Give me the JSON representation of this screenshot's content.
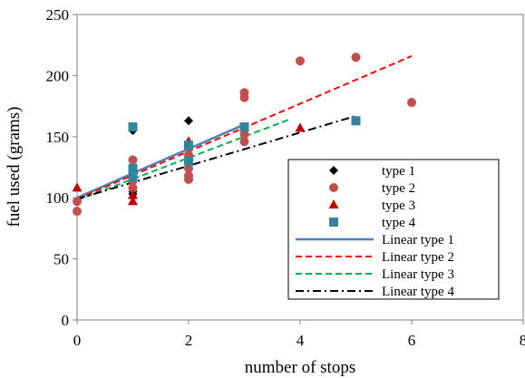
{
  "chart_data": {
    "type": "scatter",
    "title": "",
    "xlabel": "number of stops",
    "ylabel": "fuel used (grams)",
    "xlim": [
      0,
      8
    ],
    "ylim": [
      0,
      250
    ],
    "xticks": [
      0,
      2,
      4,
      6,
      8
    ],
    "yticks": [
      0,
      50,
      100,
      150,
      200,
      250
    ],
    "grid": false,
    "legend_position": "right",
    "series": [
      {
        "name": "type 1",
        "kind": "scatter",
        "marker": "diamond",
        "color": "#000000",
        "points": [
          [
            1,
            155
          ],
          [
            1,
            105
          ],
          [
            1,
            103
          ],
          [
            2,
            163
          ],
          [
            2,
            141
          ],
          [
            3,
            157
          ]
        ]
      },
      {
        "name": "type 2",
        "kind": "scatter",
        "marker": "circle",
        "color": "#c0504d",
        "points": [
          [
            0,
            89
          ],
          [
            0,
            97
          ],
          [
            1,
            131
          ],
          [
            1,
            121
          ],
          [
            1,
            116
          ],
          [
            1,
            114
          ],
          [
            1,
            108
          ],
          [
            2,
            142
          ],
          [
            2,
            135
          ],
          [
            2,
            124
          ],
          [
            2,
            118
          ],
          [
            2,
            115
          ],
          [
            3,
            186
          ],
          [
            3,
            182
          ],
          [
            3,
            152
          ],
          [
            3,
            146
          ],
          [
            4,
            212
          ],
          [
            5,
            215
          ],
          [
            6,
            178
          ]
        ]
      },
      {
        "name": "type 3",
        "kind": "scatter",
        "marker": "triangle",
        "color": "#c00000",
        "points": [
          [
            0,
            108
          ],
          [
            1,
            102
          ],
          [
            1,
            97
          ],
          [
            2,
            146
          ],
          [
            4,
            157
          ]
        ]
      },
      {
        "name": "type 4",
        "kind": "scatter",
        "marker": "square",
        "color": "#31859c",
        "points": [
          [
            1,
            158
          ],
          [
            1,
            124
          ],
          [
            1,
            117
          ],
          [
            2,
            143
          ],
          [
            2,
            130
          ],
          [
            3,
            158
          ],
          [
            5,
            163
          ]
        ]
      },
      {
        "name": "Linear type 1",
        "kind": "line",
        "dash": "solid",
        "color": "#4f81bd",
        "points": [
          [
            0,
            100
          ],
          [
            3,
            160
          ]
        ]
      },
      {
        "name": "Linear type 2",
        "kind": "line",
        "dash": "dashed",
        "color": "#ff0000",
        "points": [
          [
            0,
            99
          ],
          [
            6,
            216
          ]
        ]
      },
      {
        "name": "Linear type 3",
        "kind": "line",
        "dash": "dashed",
        "color": "#00b050",
        "points": [
          [
            0,
            98
          ],
          [
            3.8,
            164
          ]
        ]
      },
      {
        "name": "Linear type 4",
        "kind": "line",
        "dash": "dashdot",
        "color": "#000000",
        "points": [
          [
            0,
            99
          ],
          [
            5,
            167
          ]
        ]
      }
    ]
  }
}
